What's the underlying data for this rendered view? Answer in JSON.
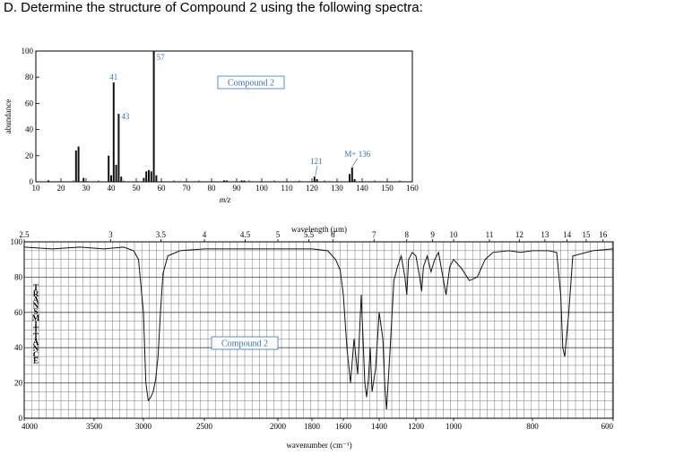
{
  "question": "D. Determine the structure of Compound 2 using the following spectra:",
  "chart_data": [
    {
      "type": "bar",
      "x": [
        15,
        26,
        27,
        29,
        39,
        40,
        41,
        42,
        43,
        44,
        53,
        54,
        55,
        56,
        57,
        58,
        85,
        86,
        92,
        93,
        121,
        122,
        135,
        136,
        137
      ],
      "values": [
        1,
        24,
        27,
        3,
        20,
        5,
        76,
        13,
        52,
        4,
        3,
        8,
        9,
        8,
        100,
        5,
        1,
        1,
        1,
        1,
        4,
        2,
        6,
        11,
        2
      ],
      "xlabel": "m/z",
      "ylabel": "abundance",
      "xlim": [
        10,
        160
      ],
      "ylim": [
        0,
        100
      ],
      "xticks": [
        "10",
        "20",
        "30",
        "40",
        "50",
        "60",
        "70",
        "80",
        "90",
        "100",
        "110",
        "120",
        "130",
        "140",
        "150",
        "160"
      ],
      "yticks": [
        "0",
        "20",
        "40",
        "60",
        "80",
        "100"
      ],
      "annotations": [
        {
          "x": 41,
          "y": 76,
          "text": "41"
        },
        {
          "x": 43,
          "y": 52,
          "text": "43"
        },
        {
          "x": 57,
          "y": 100,
          "text": "57"
        },
        {
          "x": 121,
          "y": 4,
          "text": "121"
        },
        {
          "x": 136,
          "y": 11,
          "text": "M+ 136"
        }
      ],
      "label_box": "Compound 2"
    },
    {
      "type": "line",
      "x": [
        4000,
        3800,
        3600,
        3400,
        3200,
        3100,
        3050,
        3000,
        2980,
        2960,
        2940,
        2920,
        2900,
        2880,
        2860,
        2840,
        2800,
        2700,
        2500,
        2300,
        2100,
        2000,
        1900,
        1800,
        1700,
        1650,
        1620,
        1600,
        1580,
        1560,
        1540,
        1520,
        1500,
        1480,
        1470,
        1460,
        1450,
        1440,
        1420,
        1400,
        1380,
        1370,
        1360,
        1340,
        1320,
        1300,
        1280,
        1260,
        1250,
        1240,
        1220,
        1200,
        1180,
        1170,
        1160,
        1140,
        1120,
        1100,
        1080,
        1060,
        1040,
        1020,
        1000,
        980,
        960,
        940,
        920,
        900,
        860,
        830,
        800,
        780,
        760,
        740,
        730,
        725,
        720,
        710,
        700,
        650,
        600
      ],
      "values": [
        97,
        96,
        97,
        96,
        97,
        95,
        90,
        60,
        20,
        10,
        12,
        15,
        22,
        35,
        60,
        82,
        92,
        95,
        96,
        96,
        96,
        96,
        96,
        96,
        95,
        90,
        84,
        70,
        40,
        20,
        45,
        25,
        70,
        20,
        12,
        22,
        40,
        15,
        28,
        60,
        45,
        20,
        5,
        40,
        78,
        86,
        92,
        80,
        70,
        90,
        94,
        92,
        80,
        72,
        86,
        92,
        83,
        90,
        94,
        82,
        70,
        86,
        90,
        85,
        78,
        80,
        90,
        94,
        95,
        94,
        95,
        95,
        95,
        94,
        70,
        40,
        35,
        60,
        92,
        95,
        96
      ],
      "title": "wavelength (µm)",
      "xlabel": "wavenumber (cm⁻¹)",
      "ylabel": "TRANSMITTANCE",
      "xlim": [
        4000,
        600
      ],
      "ylim": [
        0,
        100
      ],
      "xticks": [
        "4000",
        "3500",
        "3000",
        "2500",
        "2000",
        "1800",
        "1600",
        "1400",
        "1200",
        "1000",
        "800",
        "600"
      ],
      "yticks": [
        "0",
        "20",
        "40",
        "60",
        "80",
        "100"
      ],
      "top_ticks": [
        "2.5",
        "3",
        "3.5",
        "4",
        "4.5",
        "5",
        "5.5",
        "6",
        "7",
        "8",
        "9",
        "10",
        "11",
        "12",
        "13",
        "14",
        "15",
        "16"
      ],
      "label_box": "Compound 2",
      "grid": true
    }
  ]
}
